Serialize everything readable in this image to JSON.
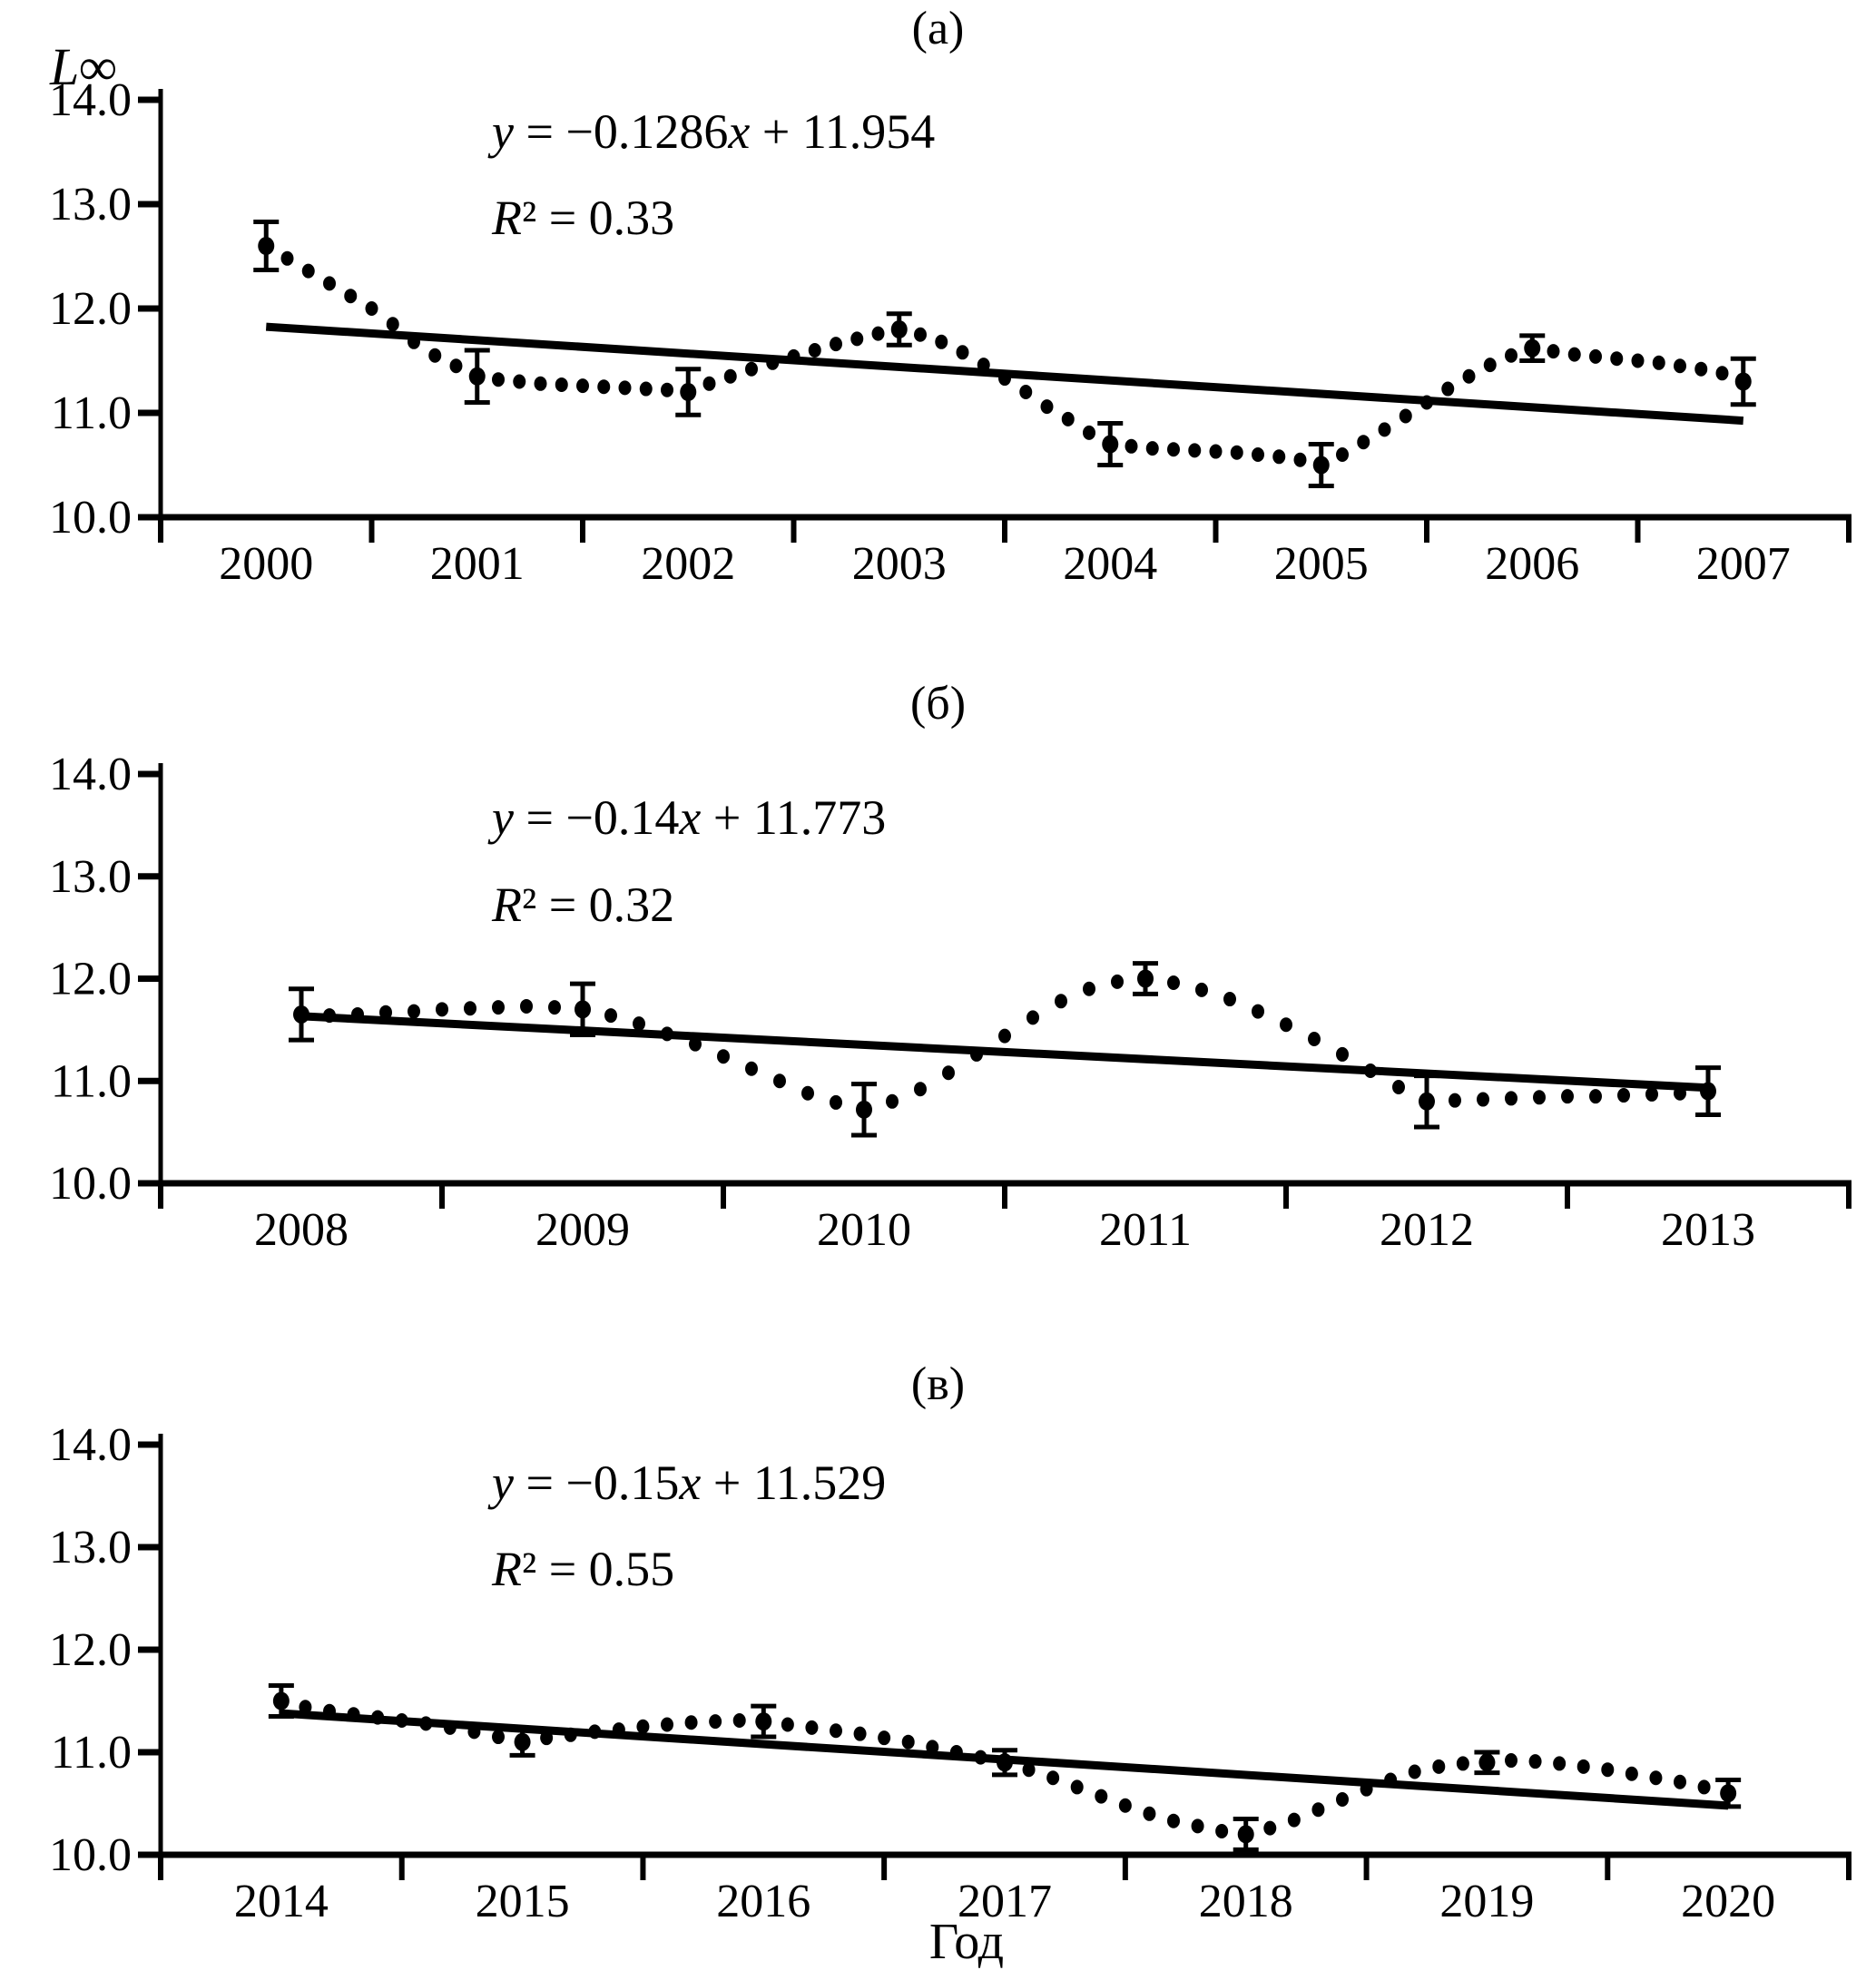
{
  "axis_labels": {
    "y": "L∞",
    "x": "Год"
  },
  "colors": {
    "ink": "#000000",
    "background": "#ffffff"
  },
  "chart_data": [
    {
      "type": "scatter",
      "panel_label": "(а)",
      "equation": "y = −0.1286x + 11.954",
      "r_squared": "R² = 0.33",
      "trend": {
        "slope": -0.1286,
        "intercept": 11.954
      },
      "x_tick_labels": [
        "2000",
        "2001",
        "2002",
        "2003",
        "2004",
        "2005",
        "2006",
        "2007"
      ],
      "y_tick_labels": [
        "14.0",
        "13.0",
        "12.0",
        "11.0",
        "10.0"
      ],
      "ylim": [
        10.0,
        14.0
      ],
      "x_start": 2000,
      "x_step": 0.1,
      "values": [
        12.6,
        12.48,
        12.36,
        12.24,
        12.12,
        12.0,
        11.85,
        11.68,
        11.55,
        11.45,
        11.35,
        11.32,
        11.3,
        11.28,
        11.27,
        11.26,
        11.25,
        11.24,
        11.23,
        11.22,
        11.2,
        11.28,
        11.35,
        11.42,
        11.48,
        11.54,
        11.6,
        11.66,
        11.71,
        11.76,
        11.8,
        11.75,
        11.68,
        11.58,
        11.46,
        11.33,
        11.2,
        11.06,
        10.94,
        10.81,
        10.7,
        10.68,
        10.66,
        10.65,
        10.64,
        10.63,
        10.62,
        10.6,
        10.58,
        10.55,
        10.5,
        10.6,
        10.72,
        10.84,
        10.97,
        11.1,
        11.23,
        11.35,
        11.46,
        11.55,
        11.62,
        11.59,
        11.56,
        11.54,
        11.52,
        11.5,
        11.48,
        11.45,
        11.42,
        11.38,
        11.3
      ],
      "error_bars": [
        {
          "x": 2000,
          "y": 12.6,
          "e": 0.23
        },
        {
          "x": 2001,
          "y": 11.35,
          "e": 0.25
        },
        {
          "x": 2002,
          "y": 11.2,
          "e": 0.22
        },
        {
          "x": 2003,
          "y": 11.8,
          "e": 0.15
        },
        {
          "x": 2004,
          "y": 10.7,
          "e": 0.2
        },
        {
          "x": 2005,
          "y": 10.5,
          "e": 0.2
        },
        {
          "x": 2006,
          "y": 11.62,
          "e": 0.12
        },
        {
          "x": 2007,
          "y": 11.3,
          "e": 0.22
        }
      ]
    },
    {
      "type": "scatter",
      "panel_label": "(б)",
      "equation": "y = −0.14x + 11.773",
      "r_squared": "R² = 0.32",
      "trend": {
        "slope": -0.14,
        "intercept": 11.773
      },
      "x_tick_labels": [
        "2008",
        "2009",
        "2010",
        "2011",
        "2012",
        "2013"
      ],
      "y_tick_labels": [
        "14.0",
        "13.0",
        "12.0",
        "11.0",
        "10.0"
      ],
      "ylim": [
        10.0,
        14.0
      ],
      "x_start": 2008,
      "x_step": 0.1,
      "values": [
        11.65,
        11.64,
        11.65,
        11.67,
        11.68,
        11.7,
        11.71,
        11.72,
        11.73,
        11.72,
        11.7,
        11.64,
        11.56,
        11.46,
        11.36,
        11.24,
        11.12,
        11.0,
        10.88,
        10.79,
        10.72,
        10.8,
        10.92,
        11.08,
        11.26,
        11.44,
        11.62,
        11.78,
        11.9,
        11.97,
        12.0,
        11.96,
        11.89,
        11.8,
        11.68,
        11.55,
        11.41,
        11.26,
        11.1,
        10.94,
        10.8,
        10.81,
        10.82,
        10.83,
        10.84,
        10.85,
        10.85,
        10.86,
        10.87,
        10.88,
        10.9
      ],
      "error_bars": [
        {
          "x": 2008,
          "y": 11.65,
          "e": 0.25
        },
        {
          "x": 2009,
          "y": 11.7,
          "e": 0.25
        },
        {
          "x": 2010,
          "y": 10.72,
          "e": 0.25
        },
        {
          "x": 2011,
          "y": 12.0,
          "e": 0.15
        },
        {
          "x": 2012,
          "y": 10.8,
          "e": 0.25
        },
        {
          "x": 2013,
          "y": 10.9,
          "e": 0.23
        }
      ]
    },
    {
      "type": "scatter",
      "panel_label": "(в)",
      "equation": "y = −0.15x + 11.529",
      "r_squared": "R² = 0.55",
      "trend": {
        "slope": -0.15,
        "intercept": 11.529
      },
      "x_tick_labels": [
        "2014",
        "2015",
        "2016",
        "2017",
        "2018",
        "2019",
        "2020"
      ],
      "y_tick_labels": [
        "14.0",
        "13.0",
        "12.0",
        "11.0",
        "10.0"
      ],
      "ylim": [
        10.0,
        14.0
      ],
      "x_start": 2014,
      "x_step": 0.1,
      "values": [
        11.5,
        11.44,
        11.4,
        11.37,
        11.34,
        11.31,
        11.28,
        11.24,
        11.2,
        11.15,
        11.1,
        11.14,
        11.17,
        11.2,
        11.22,
        11.25,
        11.27,
        11.29,
        11.3,
        11.31,
        11.3,
        11.27,
        11.24,
        11.21,
        11.18,
        11.14,
        11.1,
        11.05,
        11.0,
        10.95,
        10.9,
        10.83,
        10.75,
        10.66,
        10.57,
        10.48,
        10.4,
        10.33,
        10.28,
        10.23,
        10.2,
        10.26,
        10.34,
        10.44,
        10.54,
        10.64,
        10.73,
        10.81,
        10.86,
        10.89,
        10.9,
        10.92,
        10.91,
        10.89,
        10.86,
        10.83,
        10.79,
        10.75,
        10.71,
        10.66,
        10.6
      ],
      "error_bars": [
        {
          "x": 2014,
          "y": 11.5,
          "e": 0.15
        },
        {
          "x": 2015,
          "y": 11.1,
          "e": 0.13
        },
        {
          "x": 2016,
          "y": 11.3,
          "e": 0.15
        },
        {
          "x": 2017,
          "y": 10.9,
          "e": 0.12
        },
        {
          "x": 2018,
          "y": 10.2,
          "e": 0.15
        },
        {
          "x": 2019,
          "y": 10.9,
          "e": 0.1
        },
        {
          "x": 2020,
          "y": 10.6,
          "e": 0.13
        }
      ]
    }
  ]
}
